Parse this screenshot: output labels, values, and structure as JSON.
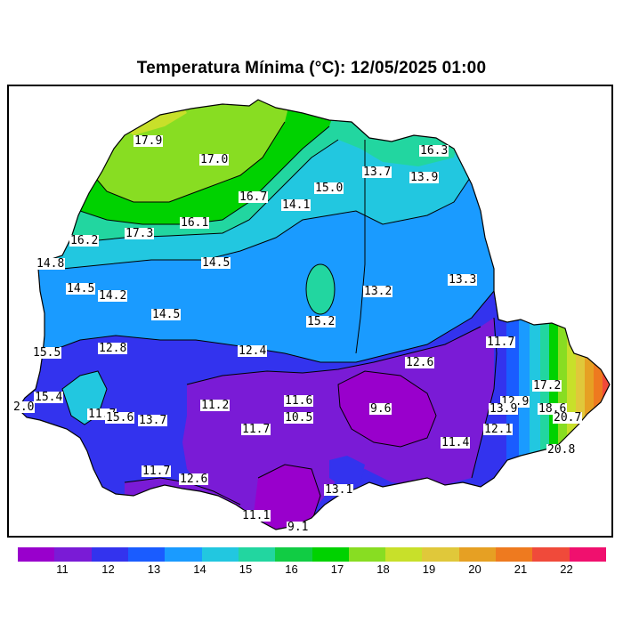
{
  "title": "Temperatura Mínima (°C): 12/05/2025 01:00",
  "legend": {
    "colors": [
      "#9900cc",
      "#7a1bd6",
      "#3333ee",
      "#1a5cff",
      "#1a9bff",
      "#22c7e0",
      "#22d6a0",
      "#11cc44",
      "#00d200",
      "#88dd22",
      "#c8e02a",
      "#e0c83a",
      "#e6a023",
      "#ee7a1f",
      "#f04a3a",
      "#f0106e"
    ],
    "ticks": [
      "11",
      "12",
      "13",
      "14",
      "15",
      "16",
      "17",
      "18",
      "19",
      "20",
      "21",
      "22"
    ]
  },
  "map_labels": [
    "17.9",
    "17.0",
    "16.3",
    "13.7",
    "13.9",
    "15.0",
    "16.7",
    "14.1",
    "16.1",
    "16.2",
    "17.3",
    "14.8",
    "14.5",
    "14.5",
    "14.2",
    "13.3",
    "13.2",
    "14.5",
    "15.2",
    "11.7",
    "12.8",
    "12.4",
    "15.5",
    "12.6",
    "17.2",
    "12.9",
    "18.6",
    "15.4",
    "2.0",
    "11.2",
    "11.6",
    "9.6",
    "13.9",
    "20.7",
    "11.7",
    "15.6",
    "13.7",
    "10.5",
    "11.7",
    "11.4",
    "12.1",
    "20.8",
    "11.7",
    "12.6",
    "13.1",
    "11.1",
    "9.1"
  ],
  "chart_data": {
    "type": "heatmap",
    "title": "Temperatura Mínima (°C): 12/05/2025 01:00",
    "colorbar_ticks": [
      11,
      12,
      13,
      14,
      15,
      16,
      17,
      18,
      19,
      20,
      21,
      22
    ],
    "station_values": [
      17.9,
      17.0,
      16.3,
      13.7,
      13.9,
      15.0,
      16.7,
      14.1,
      16.1,
      16.2,
      17.3,
      14.8,
      14.5,
      14.5,
      14.2,
      13.3,
      13.2,
      14.5,
      15.2,
      11.7,
      12.8,
      12.4,
      15.5,
      12.6,
      17.2,
      12.9,
      18.6,
      15.4,
      2.0,
      11.2,
      11.6,
      9.6,
      13.9,
      20.7,
      11.7,
      15.6,
      13.7,
      10.5,
      11.7,
      11.4,
      12.1,
      20.8,
      11.7,
      12.6,
      13.1,
      11.1,
      9.1
    ]
  }
}
